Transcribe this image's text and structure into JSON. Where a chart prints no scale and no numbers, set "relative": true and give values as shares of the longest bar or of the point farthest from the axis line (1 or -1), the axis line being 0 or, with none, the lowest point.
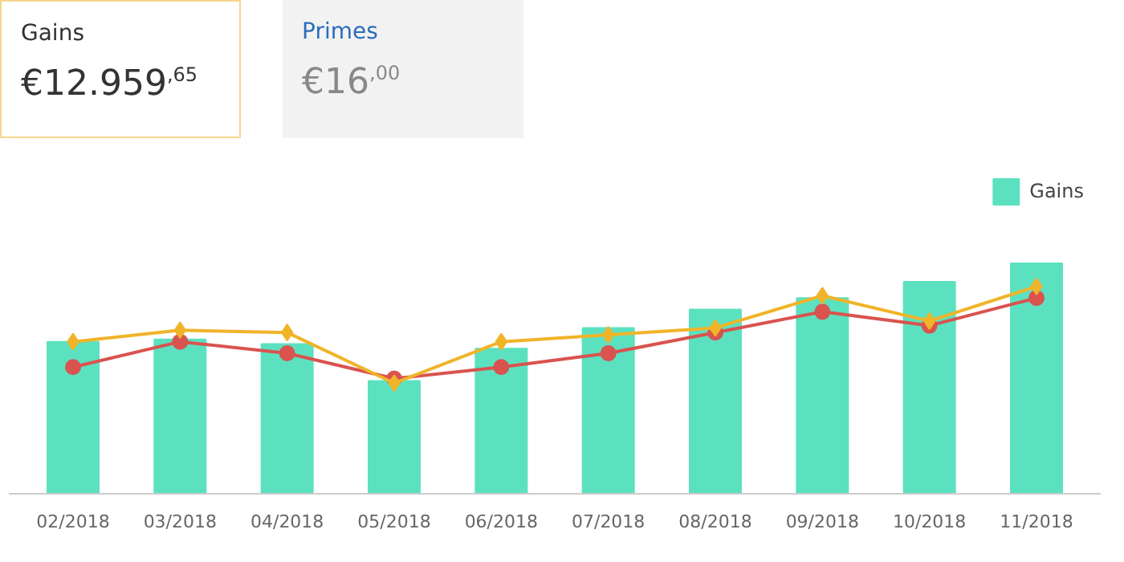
{
  "chart_data": {
    "type": "bar",
    "relative": true,
    "legend": "top right",
    "annotations": [
      "Gains",
      "€12.959$^{,65}$",
      "Primes",
      "€16$^{,00}$"
    ],
    "categories": [
      "02/2018",
      "03/2018",
      "04/2018",
      "05/2018",
      "06/2018",
      "07/2018",
      "08/2018",
      "09/2018",
      "10/2018",
      "11/2018"
    ],
    "line_style": "solid",
    "series": [
      {
        "name": "Gains",
        "color": "#5ce1c0",
        "values": [
          0.66,
          0.67,
          0.65,
          0.49,
          0.63,
          0.72,
          0.8,
          0.85,
          0.92,
          1
        ]
      },
      {
        "type": "line",
        "color": "#d9534f",
        "marker": "circle",
        "values": [
          0.55,
          0.66,
          0.61,
          0.5,
          0.55,
          0.61,
          0.7,
          0.79,
          0.73,
          0.85
        ]
      },
      {
        "type": "line",
        "color": "#f0b429",
        "marker": "diamond",
        "values": [
          0.66,
          0.71,
          0.7,
          0.48,
          0.66,
          0.69,
          0.72,
          0.86,
          0.75,
          0.9
        ]
      }
    ]
  }
}
